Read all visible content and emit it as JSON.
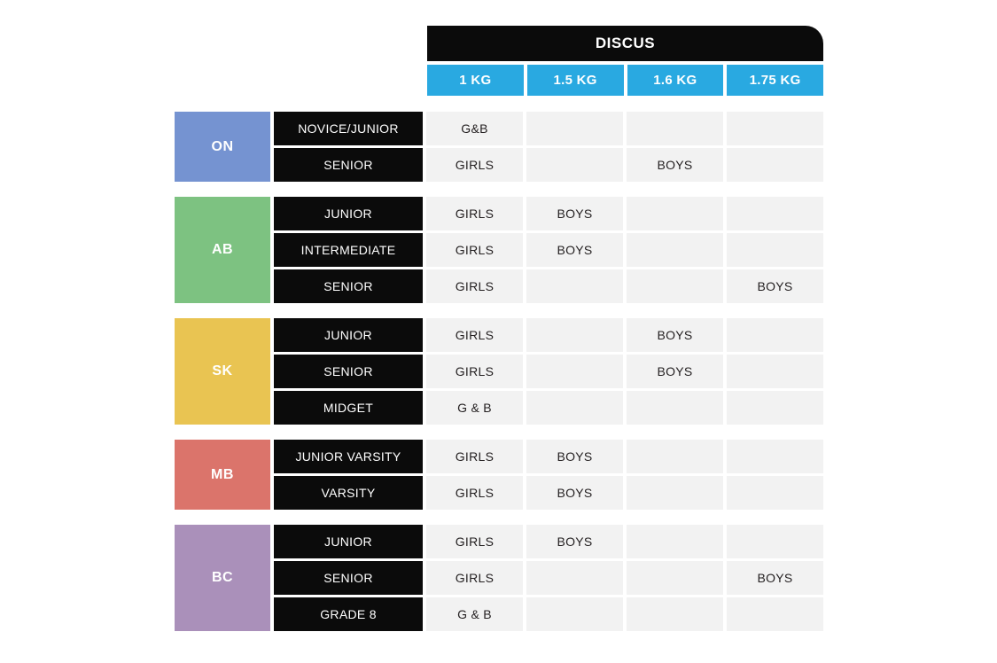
{
  "header": {
    "title": "DISCUS",
    "weights": [
      "1 KG",
      "1.5 KG",
      "1.6 KG",
      "1.75 KG"
    ]
  },
  "colors": {
    "title_bar": "#0b0b0b",
    "weight_header": "#29a9e1",
    "data_cell": "#f2f2f2",
    "on": "#7593d1",
    "ab": "#7dc281",
    "sk": "#e9c452",
    "mb": "#db746b",
    "bc": "#aa90ba"
  },
  "chart_data": {
    "type": "table",
    "title": "DISCUS",
    "columns": [
      "Province",
      "Category",
      "1 KG",
      "1.5 KG",
      "1.6 KG",
      "1.75 KG"
    ],
    "groups": [
      {
        "province": "ON",
        "color": "#7593d1",
        "rows": [
          {
            "category": "NOVICE/JUNIOR",
            "cells": [
              "G&B",
              "",
              "",
              ""
            ]
          },
          {
            "category": "SENIOR",
            "cells": [
              "GIRLS",
              "",
              "BOYS",
              ""
            ]
          }
        ]
      },
      {
        "province": "AB",
        "color": "#7dc281",
        "rows": [
          {
            "category": "JUNIOR",
            "cells": [
              "GIRLS",
              "BOYS",
              "",
              ""
            ]
          },
          {
            "category": "INTERMEDIATE",
            "cells": [
              "GIRLS",
              "BOYS",
              "",
              ""
            ]
          },
          {
            "category": "SENIOR",
            "cells": [
              "GIRLS",
              "",
              "",
              "BOYS"
            ]
          }
        ]
      },
      {
        "province": "SK",
        "color": "#e9c452",
        "rows": [
          {
            "category": "JUNIOR",
            "cells": [
              "GIRLS",
              "",
              "BOYS",
              ""
            ]
          },
          {
            "category": "SENIOR",
            "cells": [
              "GIRLS",
              "",
              "BOYS",
              ""
            ]
          },
          {
            "category": "MIDGET",
            "cells": [
              "G & B",
              "",
              "",
              ""
            ]
          }
        ]
      },
      {
        "province": "MB",
        "color": "#db746b",
        "rows": [
          {
            "category": "JUNIOR VARSITY",
            "cells": [
              "GIRLS",
              "BOYS",
              "",
              ""
            ]
          },
          {
            "category": "VARSITY",
            "cells": [
              "GIRLS",
              "BOYS",
              "",
              ""
            ]
          }
        ]
      },
      {
        "province": "BC",
        "color": "#aa90ba",
        "rows": [
          {
            "category": "JUNIOR",
            "cells": [
              "GIRLS",
              "BOYS",
              "",
              ""
            ]
          },
          {
            "category": "SENIOR",
            "cells": [
              "GIRLS",
              "",
              "",
              "BOYS"
            ]
          },
          {
            "category": "GRADE 8",
            "cells": [
              "G & B",
              "",
              "",
              ""
            ]
          }
        ]
      }
    ]
  }
}
